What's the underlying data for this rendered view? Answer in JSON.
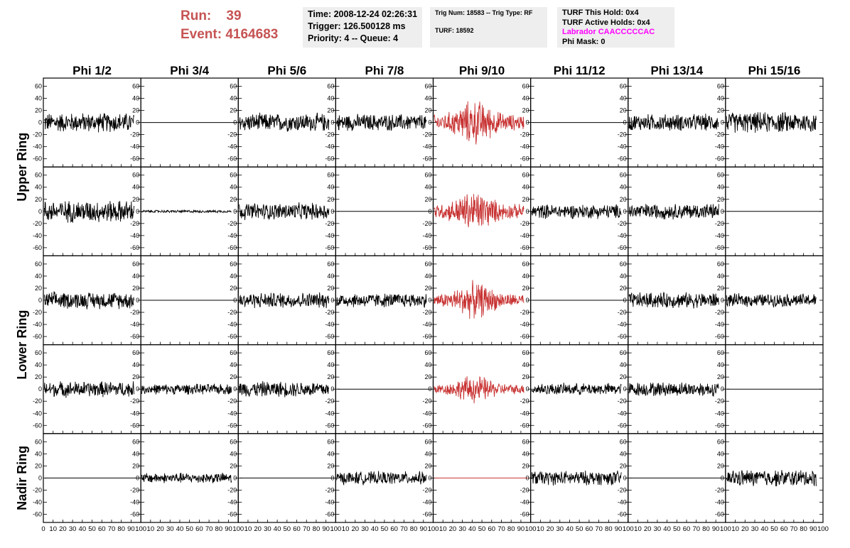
{
  "header": {
    "run_label": "Run:",
    "run_value": "39",
    "event_label": "Event:",
    "event_value": "4164683",
    "box1": {
      "line1": "Time: 2008-12-24 02:26:31",
      "line2": "Trigger: 126.500128 ms",
      "line3": "Priority: 4 -- Queue: 4"
    },
    "box2": {
      "line1": "Trig Num: 18583 -- Trig Type: RF",
      "line2": "TURF: 18592"
    },
    "box3": {
      "line1": "TURF This Hold: 0x4",
      "line2": "TURF Active Holds: 0x4",
      "line3": "Labrador CAACCCCCAC",
      "line4": "Phi Mask: 0"
    }
  },
  "colors": {
    "trace": "#000000",
    "highlight": "#c83232",
    "run_text": "#c65353",
    "labrador_text": "#ff00ff",
    "box_bg": "#eeeeee"
  },
  "chart_data": {
    "type": "line",
    "columns": [
      "Phi 1/2",
      "Phi 3/4",
      "Phi 5/6",
      "Phi 7/8",
      "Phi 9/10",
      "Phi 11/12",
      "Phi 13/14",
      "Phi 15/16"
    ],
    "row_labels": [
      {
        "text": "Upper Ring",
        "rows": [
          0,
          1
        ]
      },
      {
        "text": "Lower Ring",
        "rows": [
          2,
          3
        ]
      },
      {
        "text": "Nadir Ring",
        "rows": [
          4
        ]
      }
    ],
    "ylim": [
      -70,
      70
    ],
    "y_ticks": [
      -60,
      -40,
      -20,
      0,
      20,
      40,
      60
    ],
    "xlim": [
      0,
      100
    ],
    "x_ticks": [
      0,
      10,
      20,
      30,
      40,
      50,
      60,
      70,
      80,
      90,
      100
    ],
    "highlight_column": 4,
    "signal_amplitude": [
      [
        15,
        0,
        14,
        13,
        26,
        0,
        13,
        16
      ],
      [
        17,
        2,
        13,
        0,
        24,
        11,
        12,
        0
      ],
      [
        13,
        0,
        12,
        11,
        21,
        0,
        12,
        10
      ],
      [
        12,
        8,
        12,
        0,
        16,
        9,
        11,
        0
      ],
      [
        0,
        8,
        0,
        10,
        0,
        11,
        0,
        13
      ]
    ]
  }
}
